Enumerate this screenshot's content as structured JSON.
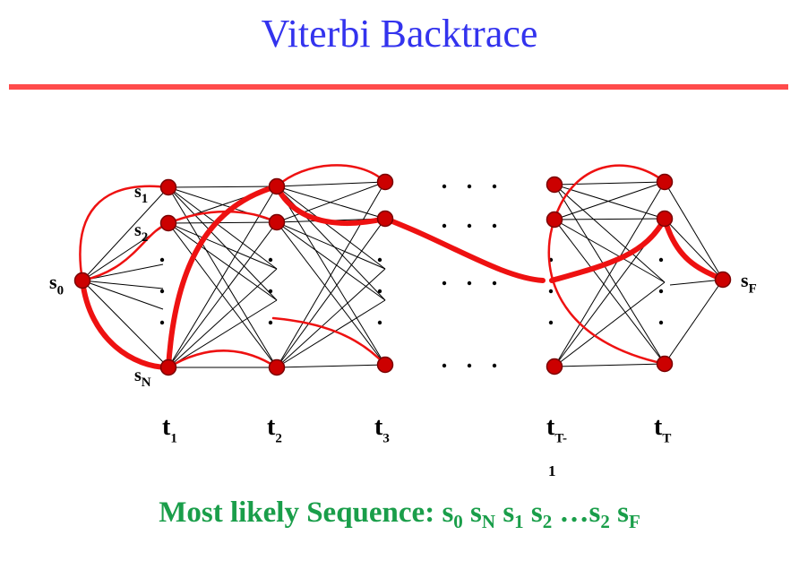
{
  "slide": {
    "title": "Viterbi Backtrace",
    "accent_color": "#ff4b4b",
    "title_color": "#3333ee",
    "caption_color": "#1a9e4a"
  },
  "trellis": {
    "state_labels": [
      {
        "id": "s0",
        "base": "s",
        "sub": "0"
      },
      {
        "id": "s1",
        "base": "s",
        "sub": "1"
      },
      {
        "id": "s2",
        "base": "s",
        "sub": "2"
      },
      {
        "id": "sN",
        "base": "s",
        "sub": "N"
      },
      {
        "id": "sF",
        "base": "s",
        "sub": "F"
      }
    ],
    "time_labels": [
      {
        "id": "t1",
        "base": "t",
        "sub": "1"
      },
      {
        "id": "t2",
        "base": "t",
        "sub": "2"
      },
      {
        "id": "t3",
        "base": "t",
        "sub": "3"
      },
      {
        "id": "tT-1",
        "base": "t",
        "sub": "T-",
        "extra": "1"
      },
      {
        "id": "tT",
        "base": "t",
        "sub": "T"
      }
    ],
    "ellipsis_char": "."
  },
  "caption": {
    "prefix": "Most likely Sequence:",
    "sequence": [
      {
        "base": "s",
        "sub": "0"
      },
      {
        "base": "s",
        "sub": "N"
      },
      {
        "base": "s",
        "sub": "1"
      },
      {
        "base": "s",
        "sub": "2"
      },
      {
        "base": "…s",
        "sub": "2"
      },
      {
        "base": "s",
        "sub": "F"
      }
    ]
  }
}
